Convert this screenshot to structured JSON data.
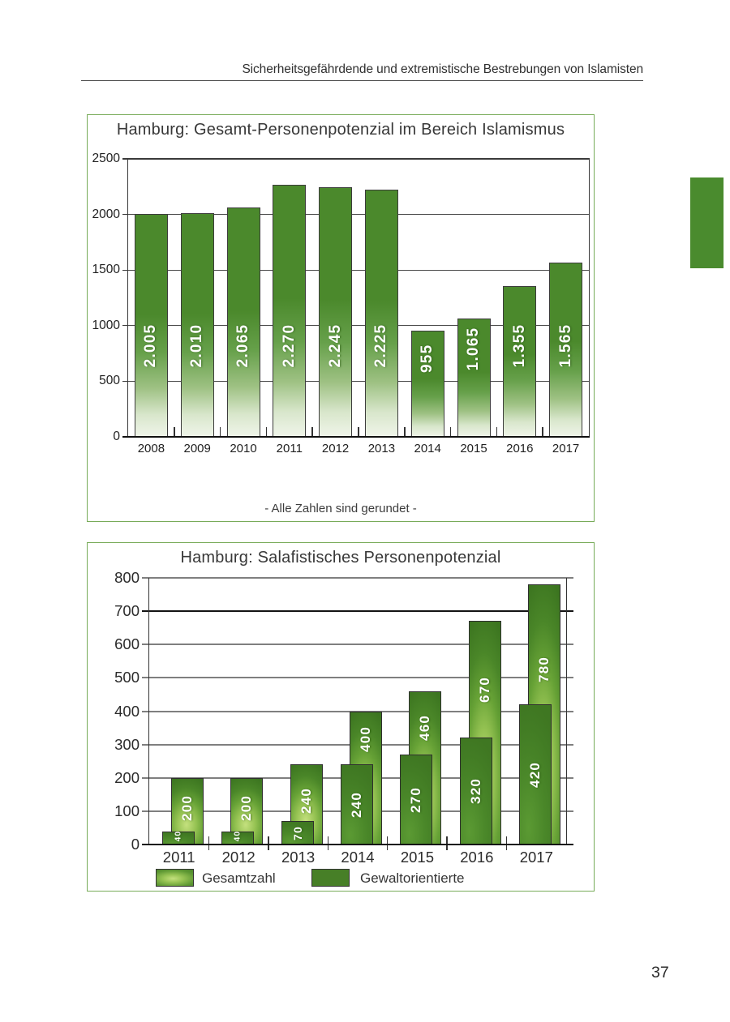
{
  "page": {
    "running_header": "Sicherheitsgefährdende und extremistische Bestrebungen von Islamisten",
    "page_number": "37"
  },
  "decoration": {
    "chapter_tab_color": "#4a8b2e",
    "box_border_color": "#77ab58",
    "primary_green": "#4a872b"
  },
  "chart_data": [
    {
      "type": "bar",
      "title": "Hamburg: Gesamt-Personenpotenzial im Bereich Islamismus",
      "categories": [
        "2008",
        "2009",
        "2010",
        "2011",
        "2012",
        "2013",
        "2014",
        "2015",
        "2016",
        "2017"
      ],
      "values": [
        2005,
        2010,
        2065,
        2270,
        2245,
        2225,
        955,
        1065,
        1355,
        1565
      ],
      "bar_labels": [
        "2.005",
        "2.010",
        "2.065",
        "2.270",
        "2.245",
        "2.225",
        "955",
        "1.065",
        "1.355",
        "1.565"
      ],
      "ylim": [
        0,
        2500
      ],
      "y_ticks": [
        0,
        500,
        1000,
        1500,
        2000,
        2500
      ],
      "grid": true,
      "legend_position": "none",
      "bar_color": "#4b892c",
      "footnote": "- Alle Zahlen sind gerundet -"
    },
    {
      "type": "bar",
      "title": "Hamburg: Salafistisches Personenpotenzial",
      "categories": [
        "2011",
        "2012",
        "2013",
        "2014",
        "2015",
        "2016",
        "2017"
      ],
      "series": [
        {
          "name": "Gesamtzahl",
          "style": "gradient",
          "values": [
            200,
            200,
            240,
            400,
            460,
            670,
            780
          ]
        },
        {
          "name": "Gewaltorientierte",
          "style": "solid",
          "values": [
            40,
            40,
            70,
            240,
            270,
            320,
            420
          ]
        }
      ],
      "ylim": [
        0,
        800
      ],
      "y_ticks": [
        0,
        100,
        200,
        300,
        400,
        500,
        600,
        700,
        800
      ],
      "grid": true,
      "legend_position": "bottom"
    }
  ]
}
